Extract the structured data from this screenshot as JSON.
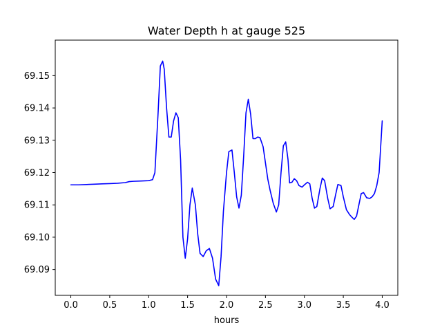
{
  "chart_data": {
    "type": "line",
    "title": "Water Depth h at gauge 525",
    "xlabel": "hours",
    "ylabel": "",
    "xlim": [
      -0.2,
      4.2
    ],
    "ylim": [
      69.082,
      69.161
    ],
    "grid": false,
    "legend": "none",
    "x_ticks": [
      "0.0",
      "0.5",
      "1.0",
      "1.5",
      "2.0",
      "2.5",
      "3.0",
      "3.5",
      "4.0"
    ],
    "y_ticks": [
      "69.09",
      "69.10",
      "69.11",
      "69.12",
      "69.13",
      "69.14",
      "69.15"
    ],
    "series": [
      {
        "color": "#0000ff",
        "x": [
          0.0,
          0.1,
          0.2,
          0.3,
          0.4,
          0.5,
          0.6,
          0.7,
          0.75,
          0.8,
          0.9,
          1.0,
          1.05,
          1.08,
          1.12,
          1.15,
          1.18,
          1.2,
          1.23,
          1.26,
          1.29,
          1.32,
          1.35,
          1.38,
          1.41,
          1.44,
          1.47,
          1.5,
          1.53,
          1.56,
          1.6,
          1.63,
          1.66,
          1.7,
          1.74,
          1.78,
          1.82,
          1.86,
          1.9,
          1.93,
          1.96,
          2.0,
          2.03,
          2.07,
          2.1,
          2.13,
          2.16,
          2.19,
          2.22,
          2.25,
          2.28,
          2.31,
          2.34,
          2.37,
          2.4,
          2.43,
          2.47,
          2.5,
          2.53,
          2.56,
          2.6,
          2.64,
          2.67,
          2.7,
          2.73,
          2.76,
          2.79,
          2.81,
          2.84,
          2.87,
          2.9,
          2.93,
          2.97,
          3.0,
          3.04,
          3.07,
          3.1,
          3.13,
          3.16,
          3.2,
          3.23,
          3.26,
          3.3,
          3.33,
          3.37,
          3.4,
          3.43,
          3.47,
          3.5,
          3.54,
          3.58,
          3.61,
          3.64,
          3.67,
          3.7,
          3.73,
          3.76,
          3.8,
          3.84,
          3.87,
          3.9,
          3.93,
          3.96,
          4.0
        ],
        "y": [
          69.1162,
          69.1162,
          69.1163,
          69.1164,
          69.1165,
          69.1166,
          69.1167,
          69.1169,
          69.1172,
          69.1173,
          69.1174,
          69.1175,
          69.1178,
          69.12,
          69.138,
          69.153,
          69.1545,
          69.152,
          69.14,
          69.131,
          69.131,
          69.136,
          69.1385,
          69.137,
          69.124,
          69.1,
          69.0935,
          69.0995,
          69.11,
          69.1152,
          69.11,
          69.101,
          69.095,
          69.094,
          69.0958,
          69.0965,
          69.0935,
          69.087,
          69.085,
          69.094,
          69.108,
          69.12,
          69.1265,
          69.127,
          69.12,
          69.1125,
          69.109,
          69.113,
          69.125,
          69.1385,
          69.1427,
          69.138,
          69.1305,
          69.1305,
          69.131,
          69.1308,
          69.128,
          69.123,
          69.118,
          69.1145,
          69.1105,
          69.1078,
          69.11,
          69.12,
          69.1283,
          69.1295,
          69.124,
          69.1168,
          69.117,
          69.1181,
          69.1175,
          69.116,
          69.1155,
          69.1162,
          69.117,
          69.1165,
          69.112,
          69.109,
          69.1095,
          69.115,
          69.1183,
          69.1175,
          69.112,
          69.1088,
          69.1095,
          69.113,
          69.1163,
          69.116,
          69.1125,
          69.1085,
          69.107,
          69.1062,
          69.1055,
          69.1065,
          69.11,
          69.1135,
          69.1138,
          69.1122,
          69.112,
          69.1125,
          69.1135,
          69.116,
          69.12,
          69.136
        ]
      }
    ]
  }
}
